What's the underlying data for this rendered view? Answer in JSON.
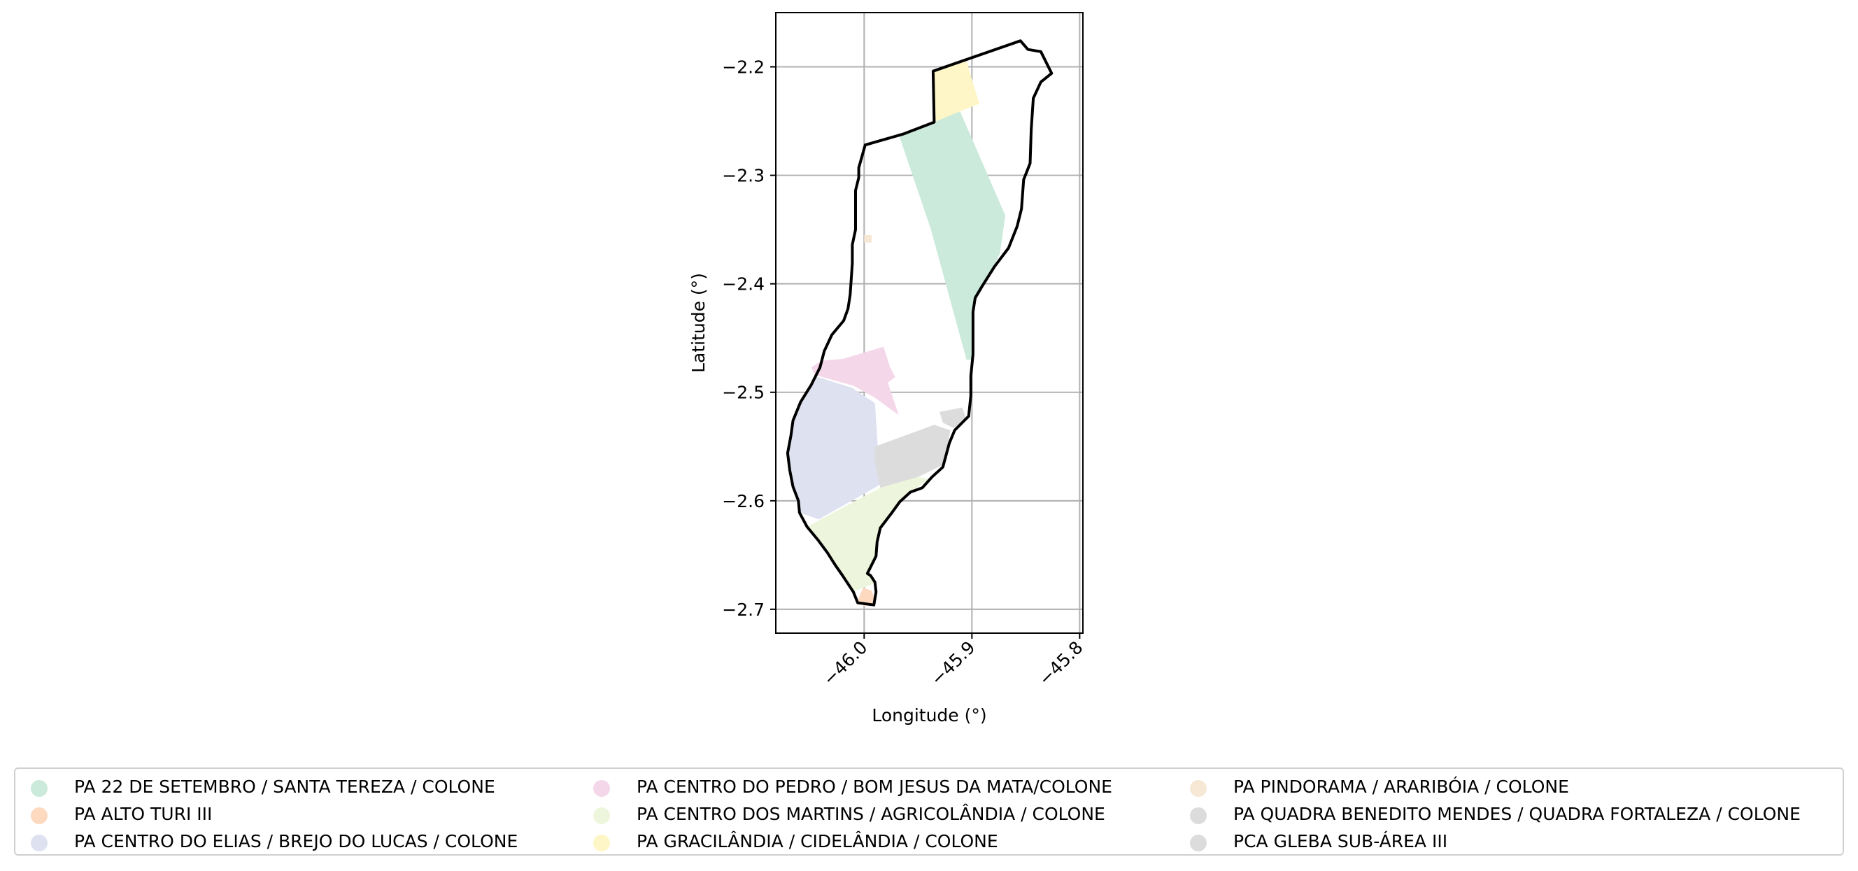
{
  "chart_data": {
    "type": "map",
    "xlabel": "Longitude (°)",
    "ylabel": "Latitude (°)",
    "xlim": [
      -46.082,
      -45.797
    ],
    "ylim": [
      -2.722,
      -2.15
    ],
    "xticks": [
      -46.0,
      -45.9,
      -45.8
    ],
    "xtick_labels": [
      "−46.0",
      "−45.9",
      "−45.8"
    ],
    "yticks": [
      -2.2,
      -2.3,
      -2.4,
      -2.5,
      -2.6,
      -2.7
    ],
    "ytick_labels": [
      "−2.2",
      "−2.3",
      "−2.4",
      "−2.5",
      "−2.6",
      "−2.7"
    ],
    "grid": true,
    "legend_placement": "bottom, outside plot, 3 columns",
    "boundary_color": "#000000",
    "boundary": [
      [
        -45.936,
        -2.204
      ],
      [
        -45.855,
        -2.176
      ],
      [
        -45.848,
        -2.184
      ],
      [
        -45.836,
        -2.186
      ],
      [
        -45.826,
        -2.206
      ],
      [
        -45.836,
        -2.214
      ],
      [
        -45.843,
        -2.229
      ],
      [
        -45.845,
        -2.258
      ],
      [
        -45.846,
        -2.289
      ],
      [
        -45.852,
        -2.304
      ],
      [
        -45.854,
        -2.331
      ],
      [
        -45.858,
        -2.347
      ],
      [
        -45.866,
        -2.367
      ],
      [
        -45.879,
        -2.384
      ],
      [
        -45.891,
        -2.403
      ],
      [
        -45.897,
        -2.413
      ],
      [
        -45.899,
        -2.426
      ],
      [
        -45.899,
        -2.465
      ],
      [
        -45.901,
        -2.485
      ],
      [
        -45.901,
        -2.503
      ],
      [
        -45.903,
        -2.522
      ],
      [
        -45.916,
        -2.535
      ],
      [
        -45.921,
        -2.547
      ],
      [
        -45.927,
        -2.569
      ],
      [
        -45.937,
        -2.578
      ],
      [
        -45.946,
        -2.588
      ],
      [
        -45.957,
        -2.592
      ],
      [
        -45.967,
        -2.601
      ],
      [
        -45.975,
        -2.612
      ],
      [
        -45.985,
        -2.625
      ],
      [
        -45.988,
        -2.638
      ],
      [
        -45.989,
        -2.651
      ],
      [
        -45.994,
        -2.661
      ],
      [
        -45.997,
        -2.667
      ],
      [
        -45.994,
        -2.669
      ],
      [
        -45.99,
        -2.675
      ],
      [
        -45.989,
        -2.684
      ],
      [
        -45.991,
        -2.696
      ],
      [
        -46.006,
        -2.694
      ],
      [
        -46.01,
        -2.684
      ],
      [
        -46.02,
        -2.669
      ],
      [
        -46.027,
        -2.659
      ],
      [
        -46.034,
        -2.648
      ],
      [
        -46.043,
        -2.636
      ],
      [
        -46.053,
        -2.624
      ],
      [
        -46.06,
        -2.611
      ],
      [
        -46.061,
        -2.6
      ],
      [
        -46.066,
        -2.587
      ],
      [
        -46.069,
        -2.572
      ],
      [
        -46.071,
        -2.556
      ],
      [
        -46.068,
        -2.54
      ],
      [
        -46.066,
        -2.526
      ],
      [
        -46.059,
        -2.509
      ],
      [
        -46.049,
        -2.493
      ],
      [
        -46.041,
        -2.477
      ],
      [
        -46.037,
        -2.462
      ],
      [
        -46.03,
        -2.447
      ],
      [
        -46.019,
        -2.434
      ],
      [
        -46.015,
        -2.423
      ],
      [
        -46.013,
        -2.41
      ],
      [
        -46.012,
        -2.396
      ],
      [
        -46.011,
        -2.381
      ],
      [
        -46.011,
        -2.364
      ],
      [
        -46.008,
        -2.35
      ],
      [
        -46.008,
        -2.333
      ],
      [
        -46.008,
        -2.314
      ],
      [
        -46.005,
        -2.302
      ],
      [
        -46.005,
        -2.293
      ],
      [
        -45.999,
        -2.272
      ],
      [
        -45.964,
        -2.262
      ],
      [
        -45.935,
        -2.251
      ]
    ],
    "series": [
      {
        "name": "PA 22 DE SETEMBRO / SANTA TEREZA / COLONE",
        "color": "#cbeadb",
        "polygon": [
          [
            -45.968,
            -2.262
          ],
          [
            -45.911,
            -2.241
          ],
          [
            -45.869,
            -2.337
          ],
          [
            -45.874,
            -2.372
          ],
          [
            -45.892,
            -2.408
          ],
          [
            -45.898,
            -2.418
          ],
          [
            -45.899,
            -2.47
          ],
          [
            -45.905,
            -2.47
          ],
          [
            -45.938,
            -2.35
          ]
        ]
      },
      {
        "name": "PA ALTO TURI III",
        "color": "#fdd9c0",
        "polygon": [
          [
            -46.001,
            -2.68
          ],
          [
            -45.993,
            -2.683
          ],
          [
            -45.989,
            -2.695
          ],
          [
            -46.0,
            -2.697
          ],
          [
            -46.006,
            -2.692
          ]
        ]
      },
      {
        "name": "PA CENTRO DO ELIAS / BREJO DO LUCAS / COLONE",
        "color": "#dde1f0",
        "polygon": [
          [
            -46.046,
            -2.485
          ],
          [
            -46.011,
            -2.496
          ],
          [
            -45.99,
            -2.51
          ],
          [
            -45.985,
            -2.585
          ],
          [
            -46.042,
            -2.617
          ],
          [
            -46.06,
            -2.611
          ],
          [
            -46.066,
            -2.588
          ],
          [
            -46.07,
            -2.556
          ],
          [
            -46.068,
            -2.54
          ],
          [
            -46.063,
            -2.52
          ]
        ]
      },
      {
        "name": "PA CENTRO DO PEDRO / BOM JESUS DA MATA/COLONE",
        "color": "#f5d7ea",
        "polygon": [
          [
            -46.049,
            -2.477
          ],
          [
            -46.04,
            -2.471
          ],
          [
            -46.019,
            -2.469
          ],
          [
            -45.982,
            -2.458
          ],
          [
            -45.976,
            -2.477
          ],
          [
            -45.971,
            -2.486
          ],
          [
            -45.978,
            -2.491
          ],
          [
            -45.968,
            -2.521
          ],
          [
            -45.99,
            -2.505
          ],
          [
            -46.01,
            -2.494
          ],
          [
            -46.046,
            -2.484
          ]
        ]
      },
      {
        "name": "PA CENTRO DOS MARTINS / AGRICOLÂNDIA / COLONE",
        "color": "#edf6dc",
        "polygon": [
          [
            -46.042,
            -2.618
          ],
          [
            -45.985,
            -2.588
          ],
          [
            -45.95,
            -2.578
          ],
          [
            -45.94,
            -2.58
          ],
          [
            -45.957,
            -2.592
          ],
          [
            -45.967,
            -2.601
          ],
          [
            -45.985,
            -2.625
          ],
          [
            -45.989,
            -2.651
          ],
          [
            -45.997,
            -2.667
          ],
          [
            -45.99,
            -2.676
          ],
          [
            -46.001,
            -2.68
          ],
          [
            -46.01,
            -2.684
          ],
          [
            -46.034,
            -2.648
          ],
          [
            -46.053,
            -2.624
          ]
        ]
      },
      {
        "name": "PA GRACILÂNDIA / CIDELÂNDIA / COLONE",
        "color": "#fff6c7",
        "polygon": [
          [
            -45.936,
            -2.204
          ],
          [
            -45.905,
            -2.195
          ],
          [
            -45.893,
            -2.234
          ],
          [
            -45.911,
            -2.241
          ],
          [
            -45.935,
            -2.251
          ]
        ]
      },
      {
        "name": "PA PINDORAMA / ARARIBÓIA / COLONE",
        "color": "#f6e8d5",
        "polygon": [
          [
            -46.0,
            -2.355
          ],
          [
            -45.993,
            -2.355
          ],
          [
            -45.993,
            -2.362
          ],
          [
            -46.0,
            -2.362
          ]
        ]
      },
      {
        "name": "PA QUADRA BENEDITO MENDES / QUADRA FORTALEZA / COLONE",
        "color": "#dcdcdc",
        "polygon": [
          [
            -45.99,
            -2.55
          ],
          [
            -45.935,
            -2.53
          ],
          [
            -45.92,
            -2.535
          ],
          [
            -45.922,
            -2.547
          ],
          [
            -45.927,
            -2.567
          ],
          [
            -45.95,
            -2.578
          ],
          [
            -45.985,
            -2.588
          ],
          [
            -45.99,
            -2.565
          ]
        ]
      },
      {
        "name": "PCA GLEBA SUB-ÁREA III",
        "color": "#dcdcdc",
        "polygon": [
          [
            -45.93,
            -2.518
          ],
          [
            -45.909,
            -2.514
          ],
          [
            -45.905,
            -2.525
          ],
          [
            -45.917,
            -2.533
          ],
          [
            -45.927,
            -2.528
          ]
        ]
      }
    ],
    "extra_patches": [
      {
        "color": "#e9d6e0",
        "polygon": [
          [
            -45.916,
            -2.27
          ],
          [
            -45.9,
            -2.266
          ],
          [
            -45.901,
            -2.273
          ],
          [
            -45.915,
            -2.278
          ]
        ]
      }
    ]
  }
}
